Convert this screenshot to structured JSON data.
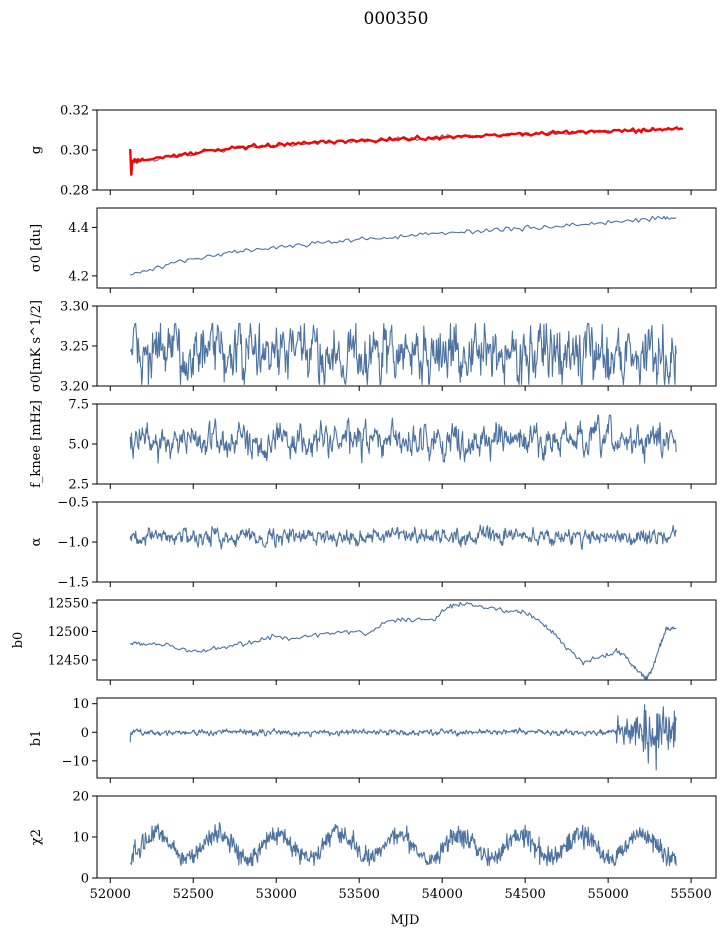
{
  "figure_title": "000350",
  "colors": {
    "series": "#4C72A0",
    "fit": "#FF0000",
    "axes": "#000000"
  },
  "chart_data": {
    "type": "line",
    "shared_x": {
      "label": "MJD",
      "lim": [
        51920,
        55650
      ],
      "ticks": [
        52000,
        52500,
        53000,
        53500,
        54000,
        54500,
        55000,
        55500
      ],
      "tick_labels": [
        "52000",
        "52500",
        "53000",
        "53500",
        "54000",
        "54500",
        "55000",
        "55500"
      ]
    },
    "x_range_data": [
      52120,
      55410
    ],
    "panels": [
      {
        "id": "g",
        "ylabel": "g",
        "ylim": [
          0.28,
          0.32
        ],
        "yticks": [
          0.28,
          0.3,
          0.32
        ],
        "ytick_labels": [
          "0.28",
          "0.30",
          "0.32"
        ],
        "series": [
          {
            "type": "line",
            "color": "#4C72A0",
            "x": [
              52120,
              52200,
              52400,
              52600,
              52800,
              53000,
              53200,
              53400,
              53600,
              53800,
              54000,
              54200,
              54400,
              54600,
              54800,
              55000,
              55200,
              55300,
              55410
            ],
            "y": [
              0.2945,
              0.2948,
              0.297,
              0.2995,
              0.301,
              0.3025,
              0.3035,
              0.304,
              0.305,
              0.3055,
              0.3065,
              0.307,
              0.3075,
              0.308,
              0.309,
              0.3095,
              0.3095,
              0.3105,
              0.3105
            ]
          },
          {
            "type": "line",
            "color": "#FF0000",
            "x": [
              52120,
              52200,
              52400,
              52600,
              52800,
              53000,
              53200,
              53400,
              53600,
              53800,
              54000,
              54200,
              54400,
              54600,
              54800,
              55000,
              55200,
              55300,
              55450
            ],
            "y": [
              0.2945,
              0.295,
              0.2975,
              0.2995,
              0.3012,
              0.3025,
              0.3035,
              0.3042,
              0.305,
              0.3056,
              0.3064,
              0.307,
              0.3076,
              0.3082,
              0.309,
              0.3095,
              0.3098,
              0.3104,
              0.3104
            ]
          }
        ]
      },
      {
        "id": "sigma0",
        "ylabel": "σ0 [du]",
        "ylim": [
          4.15,
          4.48
        ],
        "yticks": [
          4.2,
          4.4
        ],
        "ytick_labels": [
          "4.2",
          "4.4"
        ],
        "series": [
          {
            "type": "line",
            "color": "#4C72A0",
            "x": [
              52120,
              52300,
              52500,
              52700,
              52900,
              53100,
              53300,
              53500,
              53700,
              53900,
              54100,
              54300,
              54500,
              54700,
              54900,
              55100,
              55300,
              55410
            ],
            "y": [
              4.205,
              4.235,
              4.27,
              4.295,
              4.31,
              4.325,
              4.34,
              4.35,
              4.36,
              4.37,
              4.38,
              4.39,
              4.395,
              4.405,
              4.415,
              4.425,
              4.44,
              4.44
            ]
          }
        ]
      },
      {
        "id": "sigma0_noise",
        "ylabel": "σ0[mK s^1/2]",
        "ylim": [
          3.2,
          3.3
        ],
        "yticks": [
          3.2,
          3.25,
          3.3
        ],
        "ytick_labels": [
          "3.20",
          "3.25",
          "3.30"
        ],
        "series": [
          {
            "type": "line",
            "color": "#4C72A0",
            "noise": true,
            "mean": 3.24,
            "amplitude": 0.022,
            "min": 3.202,
            "max": 3.278,
            "x_range": [
              52120,
              55410
            ]
          }
        ]
      },
      {
        "id": "fknee",
        "ylabel": "f_knee [mHz]",
        "ylim": [
          2.5,
          7.5
        ],
        "yticks": [
          2.5,
          5.0,
          7.5
        ],
        "ytick_labels": [
          "2.5",
          "5.0",
          "7.5"
        ],
        "series": [
          {
            "type": "line",
            "color": "#4C72A0",
            "noise": true,
            "mean": 5.2,
            "amplitude": 0.6,
            "min": 3.7,
            "max": 6.8,
            "x_range": [
              52120,
              55410
            ]
          }
        ]
      },
      {
        "id": "alpha",
        "ylabel": "α",
        "ylim": [
          -1.5,
          -0.5
        ],
        "yticks": [
          -1.5,
          -1.0,
          -0.5
        ],
        "ytick_labels": [
          "−1.5",
          "−1.0",
          "−0.5"
        ],
        "series": [
          {
            "type": "line",
            "color": "#4C72A0",
            "noise": true,
            "mean": -0.93,
            "amplitude": 0.06,
            "min": -1.2,
            "max": -0.78,
            "x_range": [
              52120,
              55410
            ]
          }
        ]
      },
      {
        "id": "b0",
        "ylabel": "b0",
        "ylim": [
          12415,
          12555
        ],
        "yticks": [
          12450,
          12500,
          12550
        ],
        "ytick_labels": [
          "12450",
          "12500",
          "12550"
        ],
        "series": [
          {
            "type": "line",
            "color": "#4C72A0",
            "x": [
              52120,
              52200,
              52350,
              52500,
              52650,
              52800,
              52950,
              53100,
              53250,
              53400,
              53550,
              53700,
              53800,
              53950,
              54050,
              54150,
              54300,
              54450,
              54550,
              54650,
              54750,
              54850,
              54950,
              55050,
              55100,
              55150,
              55200,
              55230,
              55260,
              55300,
              55350,
              55410
            ],
            "y": [
              12480,
              12478,
              12475,
              12465,
              12470,
              12478,
              12490,
              12488,
              12495,
              12500,
              12495,
              12520,
              12520,
              12520,
              12545,
              12548,
              12540,
              12535,
              12525,
              12505,
              12470,
              12445,
              12455,
              12465,
              12458,
              12440,
              12425,
              12418,
              12430,
              12465,
              12505,
              12505
            ]
          }
        ]
      },
      {
        "id": "b1",
        "ylabel": "b1",
        "ylim": [
          -16,
          12
        ],
        "yticks": [
          -10,
          0,
          10
        ],
        "ytick_labels": [
          "−10",
          "0",
          "10"
        ],
        "series": [
          {
            "type": "line",
            "color": "#4C72A0",
            "noise": true,
            "mean": 0.0,
            "amplitude": 0.6,
            "min": -14,
            "max": 10.5,
            "x_range": [
              52120,
              55410
            ]
          }
        ]
      },
      {
        "id": "chi2",
        "ylabel": "χ2",
        "ylim": [
          0,
          20
        ],
        "yticks": [
          0,
          10,
          20
        ],
        "ytick_labels": [
          "0",
          "10",
          "20"
        ],
        "series": [
          {
            "type": "line",
            "color": "#4C72A0",
            "periodic": true,
            "mean": 7.8,
            "amplitude": 3.0,
            "period_days": 365,
            "min": 3,
            "max": 15,
            "x_range": [
              52120,
              55410
            ]
          }
        ]
      }
    ]
  }
}
